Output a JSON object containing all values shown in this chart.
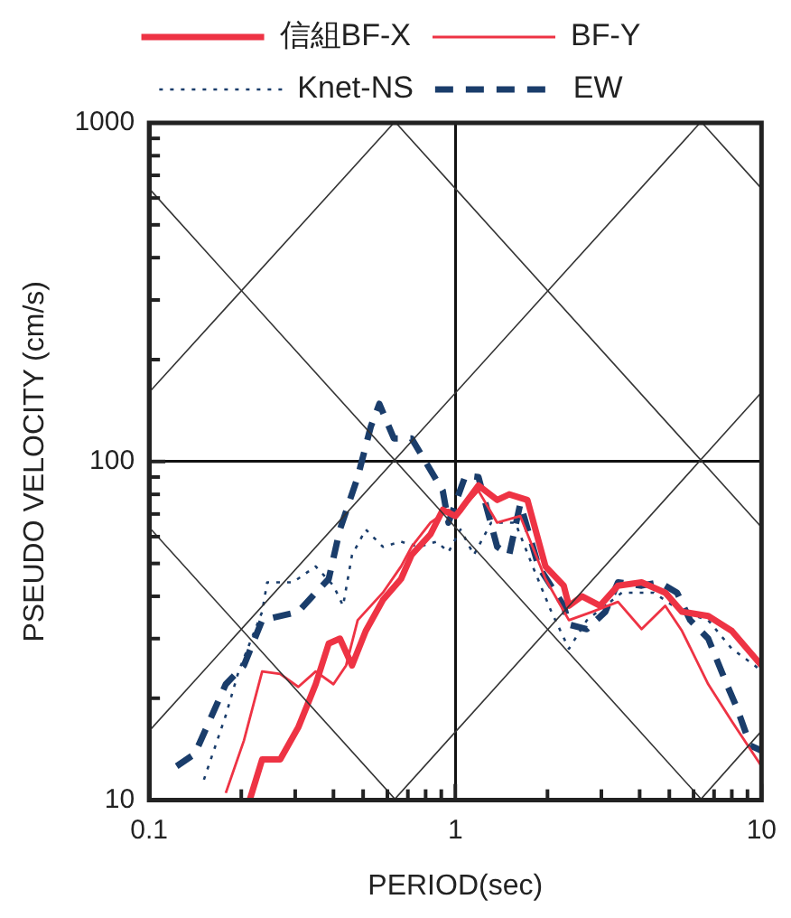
{
  "chart_data": {
    "type": "line",
    "xlabel": "PERIOD(sec)",
    "ylabel": "PSEUDO VELOCITY (cm/s)",
    "log": "xy",
    "grid": true,
    "legend": "top",
    "marker": "none",
    "xlim": [
      0.1,
      10
    ],
    "ylim": [
      10,
      1000
    ],
    "xticks": [
      0.1,
      {
        "value": 0.2,
        "label": null
      },
      {
        "value": 0.3,
        "label": null
      },
      {
        "value": 0.4,
        "label": null
      },
      {
        "value": 0.5,
        "label": null
      },
      {
        "value": 0.6,
        "label": null
      },
      {
        "value": 0.7,
        "label": null
      },
      {
        "value": 0.8,
        "label": null
      },
      {
        "value": 0.9,
        "label": null
      },
      1,
      {
        "value": 2,
        "label": null
      },
      {
        "value": 3,
        "label": null
      },
      {
        "value": 4,
        "label": null
      },
      {
        "value": 5,
        "label": null
      },
      {
        "value": 6,
        "label": null
      },
      {
        "value": 7,
        "label": null
      },
      {
        "value": 8,
        "label": null
      },
      {
        "value": 9,
        "label": null
      },
      10
    ],
    "yticks": [
      10,
      {
        "value": 20,
        "label": null
      },
      {
        "value": 30,
        "label": null
      },
      {
        "value": 40,
        "label": null
      },
      {
        "value": 50,
        "label": null
      },
      {
        "value": 60,
        "label": null
      },
      {
        "value": 70,
        "label": null
      },
      {
        "value": 80,
        "label": null
      },
      {
        "value": 90,
        "label": null
      },
      100,
      {
        "value": 200,
        "label": null
      },
      {
        "value": 300,
        "label": null
      },
      {
        "value": 400,
        "label": null
      },
      {
        "value": 500,
        "label": null
      },
      {
        "value": 600,
        "label": null
      },
      {
        "value": 700,
        "label": null
      },
      {
        "value": 800,
        "label": null
      },
      {
        "value": 900,
        "label": null
      },
      1000
    ],
    "series": [
      {
        "type": "line",
        "color": "#333333",
        "x": [
          6.3,
          10
        ],
        "values": [
          10,
          16
        ]
      },
      {
        "type": "line",
        "color": "#333333",
        "x": [
          0.63,
          10
        ],
        "values": [
          10,
          160
        ]
      },
      {
        "type": "line",
        "color": "#333333",
        "x": [
          0.1,
          6.3
        ],
        "values": [
          16,
          1000
        ]
      },
      {
        "type": "line",
        "color": "#333333",
        "x": [
          0.1,
          0.63
        ],
        "values": [
          160,
          1000
        ]
      },
      {
        "type": "line",
        "color": "#333333",
        "x": [
          0.1,
          0.64
        ],
        "values": [
          64,
          10
        ]
      },
      {
        "type": "line",
        "color": "#333333",
        "x": [
          0.1,
          6.4
        ],
        "values": [
          640,
          10
        ]
      },
      {
        "type": "line",
        "color": "#333333",
        "x": [
          0.64,
          10
        ],
        "values": [
          1000,
          64
        ]
      },
      {
        "type": "line",
        "color": "#333333",
        "x": [
          6.4,
          10
        ],
        "values": [
          1000,
          640
        ]
      },
      {
        "name": "信組BF-X",
        "color": "#ee3344",
        "line_style": "solid",
        "x": [
          0.213,
          0.234,
          0.268,
          0.307,
          0.35,
          0.386,
          0.42,
          0.46,
          0.51,
          0.58,
          0.665,
          0.72,
          0.83,
          0.91,
          1.0,
          1.04,
          1.19,
          1.37,
          1.5,
          1.72,
          1.97,
          2.26,
          2.35,
          2.59,
          2.97,
          3.4,
          4.06,
          4.85,
          5.5,
          6.7,
          8.0,
          10
        ],
        "values": [
          10,
          13.2,
          13.2,
          16.4,
          22,
          29,
          30,
          25,
          31.6,
          39,
          45,
          53,
          61,
          72,
          69,
          72,
          85,
          77,
          80,
          77,
          49,
          43,
          37.5,
          40,
          37.5,
          43,
          44,
          41,
          36,
          35,
          31.6,
          25
        ]
      },
      {
        "name": "BF-Y",
        "color": "#ee3344",
        "line_style": "solid",
        "x": [
          0.178,
          0.204,
          0.234,
          0.268,
          0.307,
          0.35,
          0.4,
          0.44,
          0.48,
          0.58,
          0.665,
          0.72,
          0.83,
          0.95,
          1.0,
          1.19,
          1.37,
          1.63,
          1.97,
          2.35,
          2.8,
          3.4,
          4.06,
          4.85,
          5.5,
          6.7,
          8.0,
          10
        ],
        "values": [
          10.5,
          15,
          24,
          23.6,
          21.6,
          24,
          22,
          25,
          34,
          41,
          49,
          56,
          66,
          72,
          69,
          82,
          66,
          69,
          45,
          34,
          36,
          38.5,
          32,
          37.5,
          31.6,
          22,
          17.1,
          12.6
        ]
      },
      {
        "name": "Knet-NS",
        "color": "#1a3d6b",
        "line_style": "dotted",
        "x": [
          0.151,
          0.178,
          0.196,
          0.234,
          0.243,
          0.295,
          0.35,
          0.4,
          0.43,
          0.46,
          0.51,
          0.58,
          0.665,
          0.76,
          0.87,
          0.95,
          1.04,
          1.15,
          1.31,
          1.57,
          1.79,
          2.06,
          2.35,
          2.69,
          3.5,
          4.45,
          5.5,
          6.7,
          8.0,
          9.5,
          10
        ],
        "values": [
          11.5,
          17.8,
          24,
          36,
          44,
          44,
          49,
          43,
          37.5,
          53,
          63,
          56,
          58,
          56,
          58,
          54,
          63,
          53,
          66,
          66,
          49,
          36,
          28,
          34,
          41,
          41,
          36,
          34,
          28,
          25,
          24
        ]
      },
      {
        "name": "EW",
        "color": "#1a3d6b",
        "line_style": "dashed",
        "x": [
          0.123,
          0.141,
          0.178,
          0.204,
          0.234,
          0.307,
          0.35,
          0.386,
          0.42,
          0.48,
          0.53,
          0.565,
          0.63,
          0.72,
          0.91,
          0.95,
          1.08,
          1.19,
          1.37,
          1.5,
          1.63,
          1.87,
          2.26,
          2.35,
          2.69,
          3.09,
          3.4,
          4.06,
          4.64,
          5.3,
          5.85,
          6.7,
          7.7,
          8.3,
          9.2,
          10
        ],
        "values": [
          12.6,
          13.7,
          22,
          25,
          34,
          36,
          41,
          45,
          63,
          90,
          127,
          148,
          117,
          117,
          82,
          66,
          91,
          90,
          56,
          53,
          75,
          49,
          37.5,
          33,
          32,
          36,
          44,
          43,
          44,
          41,
          34,
          30,
          22,
          18.8,
          14.5,
          14
        ]
      }
    ]
  }
}
